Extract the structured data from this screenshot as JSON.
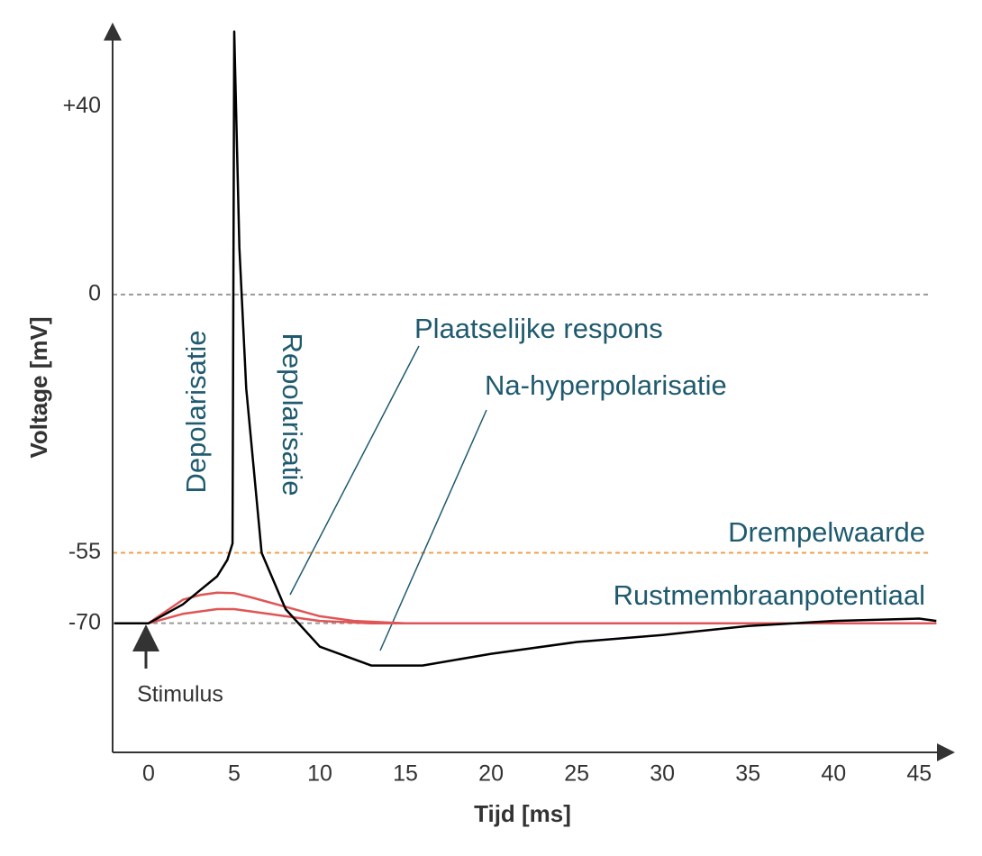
{
  "chart_data": {
    "type": "line",
    "x_label": "Tijd [ms]",
    "y_label": "Voltage [mV]",
    "xlim": [
      -2.1,
      46.3
    ],
    "ylim": [
      -97.5,
      56
    ],
    "xticks": [
      0,
      5,
      10,
      15,
      20,
      25,
      30,
      35,
      40,
      45
    ],
    "yticks": [
      {
        "value": 40,
        "label": "+40"
      },
      0,
      -55,
      -70
    ],
    "reference_lines": [
      {
        "value": 0,
        "color": "#999999"
      },
      {
        "value": -55,
        "color": "#f0a04b"
      },
      {
        "value": -70,
        "color": "#999999"
      }
    ],
    "series": [
      {
        "color": "#e05555",
        "x": [
          -2,
          0,
          1,
          2,
          3,
          4,
          5,
          6,
          8,
          10,
          12,
          15,
          46
        ],
        "values": [
          -70,
          -70,
          -67.5,
          -65,
          -64,
          -63.5,
          -63.6,
          -64.5,
          -66.5,
          -68.5,
          -69.5,
          -70,
          -70
        ]
      },
      {
        "color": "#e05555",
        "x": [
          -2,
          0,
          2,
          4,
          5,
          7,
          10,
          13,
          46
        ],
        "values": [
          -70,
          -70,
          -68,
          -67,
          -67,
          -68,
          -69.5,
          -70,
          -70
        ]
      },
      {
        "color": "#000000",
        "x": [
          -2,
          0,
          1,
          2,
          3,
          4,
          4.6,
          4.9,
          5,
          5.3,
          5.7,
          6.6,
          8,
          10,
          13,
          16,
          20,
          25,
          30,
          35,
          40,
          45,
          46
        ],
        "values": [
          -70,
          -70,
          -68,
          -66,
          -63,
          -60,
          -56.5,
          -53,
          56,
          10,
          -20,
          -55,
          -67,
          -75,
          -79,
          -79,
          -76.5,
          -74,
          -72.5,
          -70.6,
          -69.5,
          -69,
          -69.5
        ]
      }
    ],
    "annotations": [
      "Depolarisatie",
      "Repolarisatie",
      "Plaatselijke respons",
      "Na-hyperpolarisatie",
      "Drempelwaarde",
      "Rustmembraanpotentiaal",
      "Stimulus"
    ]
  }
}
